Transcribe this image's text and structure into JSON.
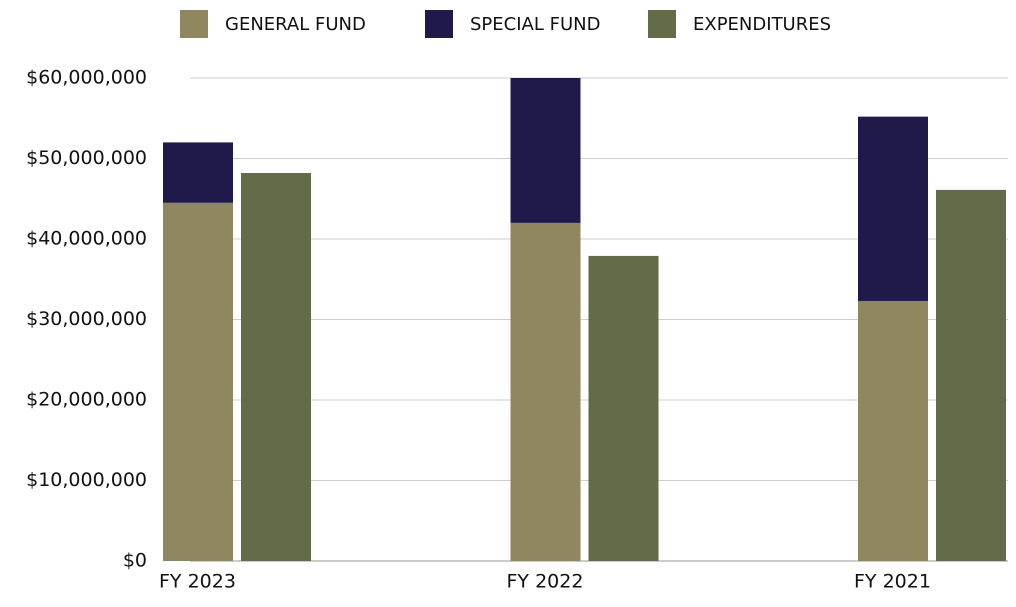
{
  "chart_data": {
    "type": "bar",
    "categories": [
      "FY 2023",
      "FY 2022",
      "FY 2021"
    ],
    "series": [
      {
        "name": "GENERAL FUND",
        "color": "#8f8760",
        "stack": "funds",
        "values": [
          44500000,
          42000000,
          32300000
        ]
      },
      {
        "name": "SPECIAL FUND",
        "color": "#201a4a",
        "stack": "funds",
        "values": [
          7500000,
          18000000,
          22900000
        ]
      },
      {
        "name": "EXPENDITURES",
        "color": "#636b48",
        "stack": "spent",
        "values": [
          48200000,
          37900000,
          46100000
        ]
      }
    ],
    "ylim": [
      0,
      60000000
    ],
    "yticks": [
      {
        "value": 0,
        "label": "$0"
      },
      {
        "value": 10000000,
        "label": "$10,000,000"
      },
      {
        "value": 20000000,
        "label": "$20,000,000"
      },
      {
        "value": 30000000,
        "label": "$30,000,000"
      },
      {
        "value": 40000000,
        "label": "$40,000,000"
      },
      {
        "value": 50000000,
        "label": "$50,000,000"
      },
      {
        "value": 60000000,
        "label": "$60,000,000"
      }
    ],
    "grid": true,
    "legend": "top"
  }
}
